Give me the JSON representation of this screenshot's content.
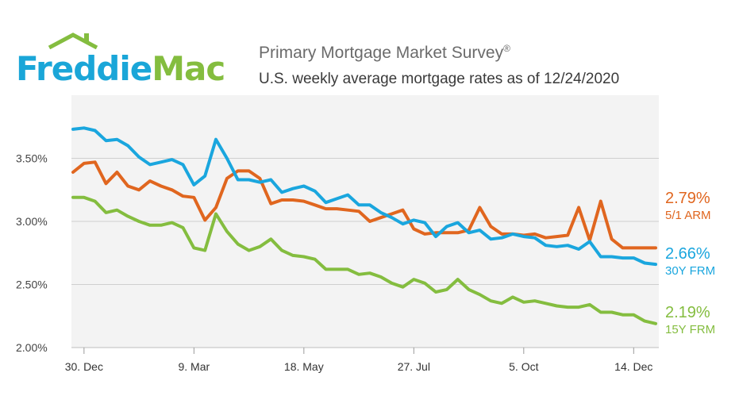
{
  "header": {
    "logo_text_1": "Freddie",
    "logo_text_2": "Mac",
    "title": "Primary Mortgage Market Survey",
    "title_mark": "®",
    "subtitle": "U.S. weekly average mortgage rates as of 12/24/2020"
  },
  "colors": {
    "logo_blue": "#1aa6d8",
    "logo_green": "#84bd3f",
    "arm": "#e0661f",
    "frm30": "#1aa6de",
    "frm15": "#84bd3f",
    "plot_bg": "#f3f3f3"
  },
  "chart_data": {
    "type": "line",
    "title": "",
    "xlabel": "",
    "ylabel": "",
    "ylim": [
      2.0,
      4.0
    ],
    "grid": true,
    "legend_placement": "right end labels",
    "yticks": [
      {
        "value": 2.0,
        "label": "2.00%"
      },
      {
        "value": 2.5,
        "label": "2.50%"
      },
      {
        "value": 3.0,
        "label": "3.00%"
      },
      {
        "value": 3.5,
        "label": "3.50%"
      }
    ],
    "xticks": [
      {
        "week": 1,
        "label": "30. Dec"
      },
      {
        "week": 11,
        "label": "9. Mar"
      },
      {
        "week": 21,
        "label": "18. May"
      },
      {
        "week": 31,
        "label": "27. Jul"
      },
      {
        "week": 41,
        "label": "5. Oct"
      },
      {
        "week": 51,
        "label": "14. Dec"
      }
    ],
    "x": [
      "12/19/2019",
      "12/26/2019",
      "1/2/2020",
      "1/9/2020",
      "1/16/2020",
      "1/23/2020",
      "1/30/2020",
      "2/6/2020",
      "2/13/2020",
      "2/20/2020",
      "2/27/2020",
      "3/5/2020",
      "3/12/2020",
      "3/19/2020",
      "3/26/2020",
      "4/2/2020",
      "4/9/2020",
      "4/16/2020",
      "4/23/2020",
      "4/30/2020",
      "5/7/2020",
      "5/14/2020",
      "5/21/2020",
      "5/28/2020",
      "6/4/2020",
      "6/11/2020",
      "6/18/2020",
      "6/25/2020",
      "7/2/2020",
      "7/9/2020",
      "7/16/2020",
      "7/23/2020",
      "7/30/2020",
      "8/6/2020",
      "8/13/2020",
      "8/20/2020",
      "8/27/2020",
      "9/3/2020",
      "9/10/2020",
      "9/17/2020",
      "9/24/2020",
      "10/1/2020",
      "10/8/2020",
      "10/15/2020",
      "10/22/2020",
      "10/29/2020",
      "11/5/2020",
      "11/12/2020",
      "11/19/2020",
      "11/25/2020",
      "12/3/2020",
      "12/10/2020",
      "12/17/2020",
      "12/24/2020"
    ],
    "series": [
      {
        "name": "5/1 ARM",
        "end_value": "2.79%",
        "color": "#e0661f",
        "values": [
          3.39,
          3.46,
          3.47,
          3.3,
          3.39,
          3.28,
          3.25,
          3.32,
          3.28,
          3.25,
          3.2,
          3.19,
          3.01,
          3.11,
          3.34,
          3.4,
          3.4,
          3.34,
          3.14,
          3.17,
          3.17,
          3.16,
          3.13,
          3.1,
          3.1,
          3.09,
          3.08,
          3.0,
          3.03,
          3.06,
          3.09,
          2.94,
          2.9,
          2.91,
          2.91,
          2.91,
          2.93,
          3.11,
          2.96,
          2.9,
          2.9,
          2.89,
          2.9,
          2.87,
          2.88,
          2.89,
          3.11,
          2.85,
          3.16,
          2.86,
          2.79,
          2.79,
          2.79,
          2.79
        ]
      },
      {
        "name": "30Y FRM",
        "end_value": "2.66%",
        "color": "#1aa6de",
        "values": [
          3.73,
          3.74,
          3.72,
          3.64,
          3.65,
          3.6,
          3.51,
          3.45,
          3.47,
          3.49,
          3.45,
          3.29,
          3.36,
          3.65,
          3.5,
          3.33,
          3.33,
          3.31,
          3.33,
          3.23,
          3.26,
          3.28,
          3.24,
          3.15,
          3.18,
          3.21,
          3.13,
          3.13,
          3.07,
          3.03,
          2.98,
          3.01,
          2.99,
          2.88,
          2.96,
          2.99,
          2.91,
          2.93,
          2.86,
          2.87,
          2.9,
          2.88,
          2.87,
          2.81,
          2.8,
          2.81,
          2.78,
          2.84,
          2.72,
          2.72,
          2.71,
          2.71,
          2.67,
          2.66
        ]
      },
      {
        "name": "15Y FRM",
        "end_value": "2.19%",
        "color": "#84bd3f",
        "values": [
          3.19,
          3.19,
          3.16,
          3.07,
          3.09,
          3.04,
          3.0,
          2.97,
          2.97,
          2.99,
          2.95,
          2.79,
          2.77,
          3.06,
          2.92,
          2.82,
          2.77,
          2.8,
          2.86,
          2.77,
          2.73,
          2.72,
          2.7,
          2.62,
          2.62,
          2.62,
          2.58,
          2.59,
          2.56,
          2.51,
          2.48,
          2.54,
          2.51,
          2.44,
          2.46,
          2.54,
          2.46,
          2.42,
          2.37,
          2.35,
          2.4,
          2.36,
          2.37,
          2.35,
          2.33,
          2.32,
          2.32,
          2.34,
          2.28,
          2.28,
          2.26,
          2.26,
          2.21,
          2.19
        ]
      }
    ]
  }
}
